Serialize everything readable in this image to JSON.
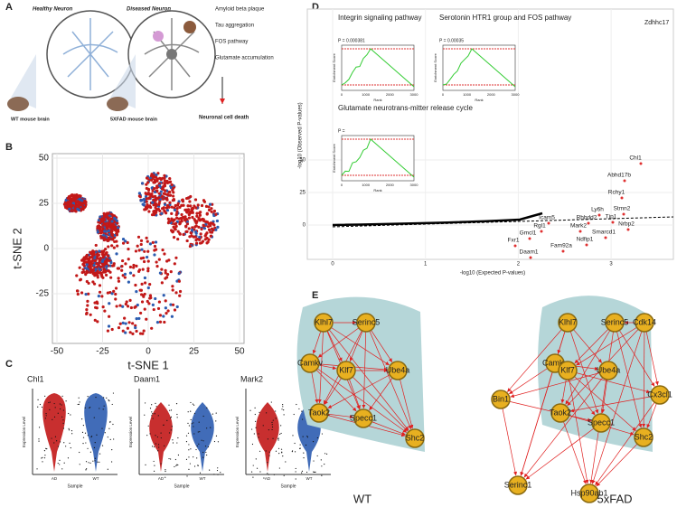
{
  "panel_a": {
    "label": "A",
    "healthy": "Healthy Neuron",
    "diseased": "Diseased Neuron",
    "features": [
      "Amyloid beta plaque",
      "Tau aggregation",
      "FOS pathway",
      "Glutamate accumulation"
    ],
    "wt": "WT mouse brain",
    "fad": "5XFAD mouse brain",
    "outcome": "Neuronal cell death"
  },
  "panel_b": {
    "label": "B",
    "xlabel": "t-SNE 1",
    "ylabel": "t-SNE 2",
    "xticks": [
      -50,
      -25,
      0,
      25,
      50
    ],
    "yticks": [
      50,
      25,
      0,
      -25
    ]
  },
  "panel_c": {
    "label": "C",
    "plots": [
      {
        "title": "Chl1",
        "ylabel": "Expression Level",
        "xlabel": "Sample",
        "groups": [
          "AD",
          "WT"
        ]
      },
      {
        "title": "Daam1",
        "ylabel": "Expression Level",
        "xlabel": "Sample",
        "groups": [
          "AD",
          "WT"
        ]
      },
      {
        "title": "Mark2",
        "ylabel": "Expression Level",
        "xlabel": "Sample",
        "groups": [
          "AD",
          "WT"
        ]
      }
    ]
  },
  "panel_d": {
    "label": "D",
    "top_gene": "Zdhhc17",
    "ylabel": "-log10 (Observed P-values)",
    "xlabel": "-log10 (Expected P-values)",
    "xticks": [
      0,
      1,
      2,
      3
    ],
    "yticks": [
      0,
      25,
      50
    ],
    "genes": [
      "Chl1",
      "Abhd17b",
      "Rchy1",
      "Stmn2",
      "Ly6h",
      "Tjp1",
      "Nrbp2",
      "Icam5",
      "Rhbdd2",
      "Rgl1",
      "Mark2",
      "Smarcd1",
      "Gmcl1",
      "Ndfip1",
      "Fxr1",
      "Fam92a",
      "Daam1"
    ],
    "insets": [
      {
        "title": "Integrin signaling pathway",
        "p": "P = 0.000381",
        "ylabel": "Enrichment Score",
        "xlabel": "Rank",
        "xticks": [
          0,
          1000,
          2000,
          3000
        ]
      },
      {
        "title": "Serotonin HTR1 group and FOS pathway",
        "p": "P = 0.00035",
        "ylabel": "Enrichment Score",
        "xlabel": "Rank",
        "xticks": [
          0,
          1000,
          2000,
          3000
        ]
      },
      {
        "title": "Glutamate neurotrans-mitter release cycle",
        "p": "P =",
        "ylabel": "Enrichment Score",
        "xlabel": "Rank",
        "xticks": [
          0,
          1000,
          2000,
          3000
        ]
      }
    ]
  },
  "panel_e": {
    "label": "E",
    "networks": [
      {
        "name": "WT",
        "nodes": [
          "Klhl7",
          "Serinc5",
          "Camkv",
          "Klf7",
          "Ube4a",
          "Taok2",
          "Specc1",
          "Shc2"
        ]
      },
      {
        "name": "5xFAD",
        "nodes": [
          "Cdk14",
          "Klhl7",
          "Serinc5",
          "Camkv",
          "Klf7",
          "Ube4a",
          "Cx3cl1",
          "Bin1",
          "Taok2",
          "Specc1",
          "Shc2",
          "Serinc1",
          "Hsp90ab1"
        ]
      }
    ]
  }
}
